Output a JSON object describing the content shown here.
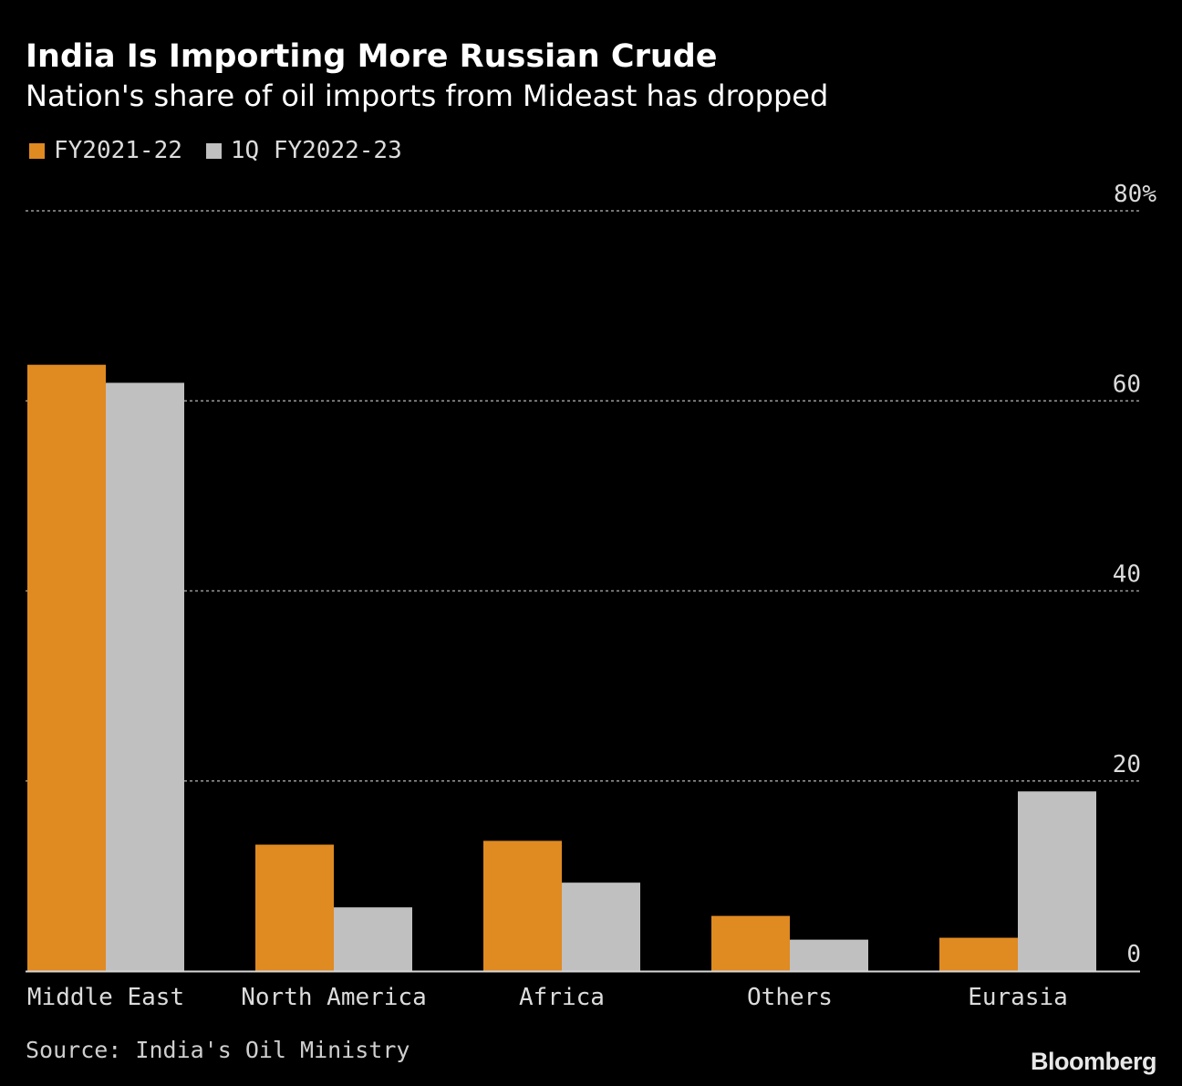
{
  "header": {
    "title": "India Is Importing More Russian Crude",
    "subtitle": "Nation's share of oil imports from Mideast has dropped"
  },
  "colors": {
    "series_a": "#e08a22",
    "series_b": "#c0c0c0",
    "gridline": "#9a9a9a",
    "background": "#000000"
  },
  "chart_data": {
    "type": "bar",
    "title": "India Is Importing More Russian Crude",
    "subtitle": "Nation's share of oil imports from Mideast has dropped",
    "categories": [
      "Middle East",
      "North America",
      "Africa",
      "Others",
      "Eurasia"
    ],
    "series": [
      {
        "name": "FY2021-22",
        "values": [
          63.8,
          13.3,
          13.7,
          5.8,
          3.5
        ]
      },
      {
        "name": "1Q FY2022-23",
        "values": [
          61.9,
          6.7,
          9.3,
          3.3,
          18.9
        ]
      }
    ],
    "y_ticks": [
      0,
      20,
      40,
      60,
      80
    ],
    "y_tick_labels": [
      "0",
      "20",
      "40",
      "60",
      "80%"
    ],
    "ylim": [
      0,
      80
    ],
    "xlabel": "",
    "ylabel": "",
    "grid": true,
    "legend_position": "top-left"
  },
  "footer": {
    "source": "Source: India's Oil Ministry",
    "brand": "Bloomberg"
  }
}
